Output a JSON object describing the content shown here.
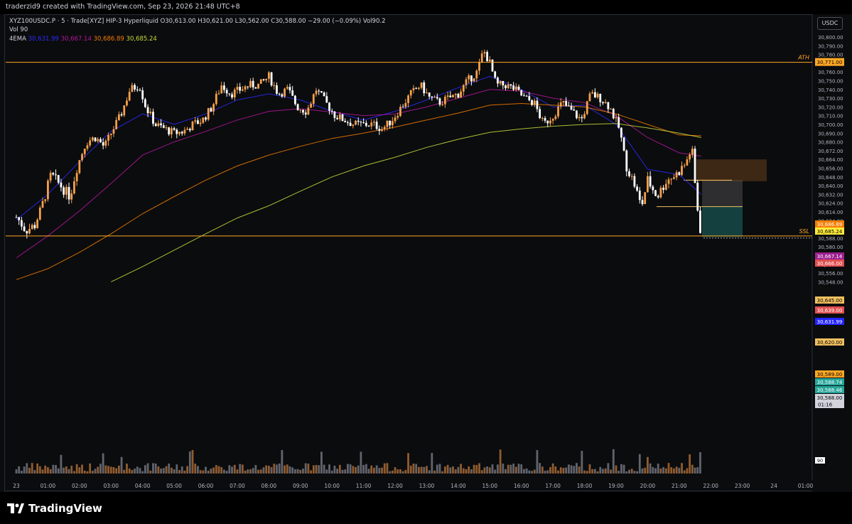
{
  "header": {
    "caption": "traderzid9 created with TradingView.com, Sep 23, 2026 21:48 UTC+8"
  },
  "legend": {
    "symbol_line": "XYZ100USDC.P · 5 · Trade[XYZ] HIP-3 Hyperliquid",
    "ohlc": {
      "o": "O30,613.00",
      "h": "H30,621.00",
      "l": "L30,562.00",
      "c": "C30,588.00",
      "chg": "−29.00 (−0.09%)",
      "vol": "Vol90.2"
    },
    "vol_label": "Vol",
    "vol_value": "90",
    "ema_label": "4EMA",
    "ema_values": [
      "30,631.99",
      "30,667.14",
      "30,686.89",
      "30,685.24"
    ]
  },
  "currency": "USDC",
  "brand": "TradingView",
  "colors": {
    "up": "#f7a04b",
    "down": "#ffffff",
    "ema20": "#2c2cff",
    "ema50": "#b5179e",
    "ema100": "#f57c00",
    "ema200": "#cddc39",
    "level": "#ffa726",
    "volume_up": "#b2703a",
    "volume_down": "#787b86"
  },
  "chart_data": {
    "type": "candlestick",
    "symbol": "XYZ100USDC.P",
    "interval": "5",
    "ylim": [
      30548,
      30800
    ],
    "y_ticks": [
      "30,800.00",
      "30,790.00",
      "30,780.00",
      "30,770.00",
      "30,760.00",
      "30,750.00",
      "30,740.00",
      "30,730.00",
      "30,720.00",
      "30,710.00",
      "30,700.00",
      "30,690.00",
      "30,680.00",
      "30,672.00",
      "30,664.00",
      "30,656.00",
      "30,648.00",
      "30,640.00",
      "30,632.00",
      "30,624.00",
      "30,614.00",
      "30,604.00",
      "30,596.00",
      "30,588.00",
      "30,580.00",
      "30,572.00",
      "30,564.00",
      "30,556.00",
      "30,548.00"
    ],
    "x_ticks": [
      "23",
      "01:00",
      "02:00",
      "03:00",
      "04:00",
      "05:00",
      "06:00",
      "07:00",
      "08:00",
      "09:00",
      "10:00",
      "11:00",
      "12:00",
      "13:00",
      "14:00",
      "15:00",
      "16:00",
      "17:00",
      "18:00",
      "19:00",
      "20:00",
      "21:00",
      "22:00",
      "23:00",
      "24",
      "01:00"
    ],
    "x_tick_hours": [
      0,
      1,
      2,
      3,
      4,
      5,
      6,
      7,
      8,
      9,
      10,
      11,
      12,
      13,
      14,
      15,
      16,
      17,
      18,
      19,
      20,
      21,
      22,
      23,
      24,
      25
    ],
    "x_range_hours": [
      0,
      26
    ],
    "levels": [
      {
        "label": "ATH",
        "price": 30771.0,
        "tag": "30,771.00"
      },
      {
        "label": "SSL",
        "price": 30590.0,
        "tag": ""
      }
    ],
    "price_tags": [
      {
        "price": 30686.89,
        "text": "30,686.89",
        "bg": "#f57c00",
        "fg": "#ffffff"
      },
      {
        "price": 30685.24,
        "text": "30,685.24",
        "bg": "#ffeb3b",
        "fg": "#000000"
      },
      {
        "price": 30667.14,
        "text": "30,667.14",
        "bg": "#9c1f8f",
        "fg": "#ffffff"
      },
      {
        "price": 30666.0,
        "text": "30,666.00",
        "bg": "#e05050",
        "fg": "#ffffff"
      },
      {
        "price": 30645.0,
        "text": "30,645.00",
        "bg": "#f0c060",
        "fg": "#000000"
      },
      {
        "price": 30639.0,
        "text": "30,639.00",
        "bg": "#e05050",
        "fg": "#ffffff"
      },
      {
        "price": 30631.99,
        "text": "30,631.99",
        "bg": "#2424ff",
        "fg": "#ffffff"
      },
      {
        "price": 30620.0,
        "text": "30,620.00",
        "bg": "#f0c060",
        "fg": "#000000"
      },
      {
        "price": 30589.0,
        "text": "30,589.00",
        "bg": "#ffa726",
        "fg": "#000000"
      },
      {
        "price": 30588.74,
        "text": "30,588.74",
        "bg": "#26a69a",
        "fg": "#ffffff"
      },
      {
        "price": 30588.46,
        "text": "30,588.46",
        "bg": "#26a69a",
        "fg": "#ffffff"
      },
      {
        "price": 30588.0,
        "text": "30,588.00",
        "bg": "#d1d4dc",
        "fg": "#000000",
        "sub": "01:16"
      }
    ],
    "volume_tag": "90",
    "candles_hourly_path": [
      [
        0,
        30608
      ],
      [
        0.3,
        30595
      ],
      [
        0.6,
        30600
      ],
      [
        0.9,
        30630
      ],
      [
        1.1,
        30650
      ],
      [
        1.4,
        30640
      ],
      [
        1.7,
        30630
      ],
      [
        1.9,
        30655
      ],
      [
        2.2,
        30680
      ],
      [
        2.5,
        30685
      ],
      [
        2.8,
        30675
      ],
      [
        3.0,
        30690
      ],
      [
        3.3,
        30710
      ],
      [
        3.6,
        30740
      ],
      [
        3.9,
        30745
      ],
      [
        4.1,
        30720
      ],
      [
        4.4,
        30700
      ],
      [
        4.7,
        30695
      ],
      [
        5.0,
        30690
      ],
      [
        5.3,
        30692
      ],
      [
        5.6,
        30700
      ],
      [
        5.9,
        30705
      ],
      [
        6.2,
        30720
      ],
      [
        6.5,
        30745
      ],
      [
        6.8,
        30735
      ],
      [
        7.1,
        30740
      ],
      [
        7.4,
        30745
      ],
      [
        7.7,
        30745
      ],
      [
        8.0,
        30755
      ],
      [
        8.3,
        30735
      ],
      [
        8.6,
        30740
      ],
      [
        8.9,
        30720
      ],
      [
        9.2,
        30715
      ],
      [
        9.5,
        30740
      ],
      [
        9.8,
        30725
      ],
      [
        10.1,
        30710
      ],
      [
        10.4,
        30705
      ],
      [
        10.7,
        30700
      ],
      [
        11.0,
        30700
      ],
      [
        11.3,
        30700
      ],
      [
        11.6,
        30695
      ],
      [
        11.9,
        30705
      ],
      [
        12.2,
        30720
      ],
      [
        12.5,
        30735
      ],
      [
        12.8,
        30745
      ],
      [
        13.1,
        30730
      ],
      [
        13.4,
        30725
      ],
      [
        13.7,
        30730
      ],
      [
        14.0,
        30735
      ],
      [
        14.3,
        30750
      ],
      [
        14.6,
        30760
      ],
      [
        14.8,
        30785
      ],
      [
        15.0,
        30770
      ],
      [
        15.2,
        30745
      ],
      [
        15.5,
        30745
      ],
      [
        15.8,
        30740
      ],
      [
        16.1,
        30730
      ],
      [
        16.4,
        30725
      ],
      [
        16.7,
        30700
      ],
      [
        17.0,
        30710
      ],
      [
        17.3,
        30725
      ],
      [
        17.6,
        30715
      ],
      [
        17.9,
        30705
      ],
      [
        18.2,
        30735
      ],
      [
        18.5,
        30730
      ],
      [
        18.8,
        30720
      ],
      [
        19.1,
        30695
      ],
      [
        19.3,
        30660
      ],
      [
        19.6,
        30640
      ],
      [
        19.8,
        30620
      ],
      [
        20.0,
        30645
      ],
      [
        20.3,
        30630
      ],
      [
        20.6,
        30645
      ],
      [
        20.9,
        30650
      ],
      [
        21.2,
        30660
      ],
      [
        21.4,
        30675
      ],
      [
        21.55,
        30625
      ],
      [
        21.7,
        30588
      ]
    ],
    "ema_series": [
      {
        "period": 20,
        "points": [
          [
            0,
            30605
          ],
          [
            1,
            30632
          ],
          [
            2,
            30662
          ],
          [
            3,
            30692
          ],
          [
            4,
            30712
          ],
          [
            5,
            30700
          ],
          [
            6,
            30712
          ],
          [
            7,
            30728
          ],
          [
            8,
            30735
          ],
          [
            9,
            30728
          ],
          [
            10,
            30715
          ],
          [
            11,
            30705
          ],
          [
            12,
            30715
          ],
          [
            13,
            30728
          ],
          [
            14,
            30742
          ],
          [
            15,
            30755
          ],
          [
            16,
            30740
          ],
          [
            17,
            30720
          ],
          [
            18,
            30722
          ],
          [
            19,
            30700
          ],
          [
            20,
            30655
          ],
          [
            21,
            30650
          ],
          [
            21.7,
            30632
          ]
        ]
      },
      {
        "period": 50,
        "points": [
          [
            0,
            30570
          ],
          [
            1,
            30590
          ],
          [
            2,
            30615
          ],
          [
            3,
            30642
          ],
          [
            4,
            30668
          ],
          [
            5,
            30680
          ],
          [
            6,
            30692
          ],
          [
            7,
            30705
          ],
          [
            8,
            30715
          ],
          [
            9,
            30718
          ],
          [
            10,
            30714
          ],
          [
            11,
            30710
          ],
          [
            12,
            30712
          ],
          [
            13,
            30720
          ],
          [
            14,
            30730
          ],
          [
            15,
            30740
          ],
          [
            16,
            30738
          ],
          [
            17,
            30730
          ],
          [
            18,
            30725
          ],
          [
            19,
            30710
          ],
          [
            20,
            30685
          ],
          [
            21,
            30670
          ],
          [
            21.7,
            30667
          ]
        ]
      },
      {
        "period": 100,
        "points": [
          [
            0,
            30550
          ],
          [
            1,
            30560
          ],
          [
            2,
            30575
          ],
          [
            3,
            30592
          ],
          [
            4,
            30612
          ],
          [
            5,
            30630
          ],
          [
            6,
            30645
          ],
          [
            7,
            30658
          ],
          [
            8,
            30668
          ],
          [
            9,
            30676
          ],
          [
            10,
            30684
          ],
          [
            11,
            30690
          ],
          [
            12,
            30697
          ],
          [
            13,
            30705
          ],
          [
            14,
            30713
          ],
          [
            15,
            30722
          ],
          [
            16,
            30724
          ],
          [
            17,
            30722
          ],
          [
            18,
            30720
          ],
          [
            19,
            30712
          ],
          [
            20,
            30700
          ],
          [
            21,
            30688
          ],
          [
            21.7,
            30687
          ]
        ]
      },
      {
        "period": 200,
        "points": [
          [
            3,
            30548
          ],
          [
            4,
            30562
          ],
          [
            5,
            30577
          ],
          [
            6,
            30592
          ],
          [
            7,
            30607
          ],
          [
            8,
            30621
          ],
          [
            9,
            30635
          ],
          [
            10,
            30648
          ],
          [
            11,
            30658
          ],
          [
            12,
            30666
          ],
          [
            13,
            30675
          ],
          [
            14,
            30683
          ],
          [
            15,
            30691
          ],
          [
            16,
            30695
          ],
          [
            17,
            30698
          ],
          [
            18,
            30700
          ],
          [
            19,
            30701
          ],
          [
            20,
            30696
          ],
          [
            21,
            30690
          ],
          [
            21.7,
            30685
          ]
        ]
      }
    ]
  }
}
